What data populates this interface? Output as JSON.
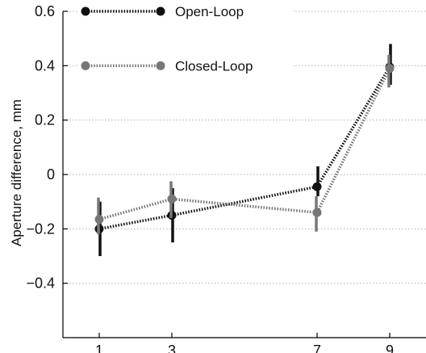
{
  "chart_data": {
    "type": "line",
    "title": "",
    "xlabel": "",
    "ylabel": "Aperture difference, mm",
    "xlim": [
      0,
      10
    ],
    "ylim": [
      -0.6,
      0.6
    ],
    "x_ticks": [
      1,
      3,
      7,
      9
    ],
    "y_ticks": [
      -0.4,
      -0.2,
      0,
      0.2,
      0.4,
      0.6
    ],
    "y_tick_labels": [
      "−0.4",
      "−0.2",
      "0",
      "0.2",
      "0.4",
      "0.6"
    ],
    "grid": "horizontal dotted",
    "legend_position": "top-left",
    "series": [
      {
        "name": "Open-Loop",
        "color": "#111111",
        "x": [
          1,
          3,
          7,
          9
        ],
        "y": [
          -0.2,
          -0.15,
          -0.045,
          0.395
        ],
        "err_low": [
          -0.3,
          -0.25,
          -0.08,
          0.33
        ],
        "err_high": [
          -0.1,
          -0.05,
          0.03,
          0.48
        ]
      },
      {
        "name": "Closed-Loop",
        "color": "#777777",
        "x": [
          1,
          3,
          7,
          9
        ],
        "y": [
          -0.165,
          -0.09,
          -0.14,
          0.39
        ],
        "err_low": [
          -0.22,
          -0.16,
          -0.21,
          0.32
        ],
        "err_high": [
          -0.085,
          -0.025,
          -0.08,
          0.44
        ]
      }
    ]
  }
}
